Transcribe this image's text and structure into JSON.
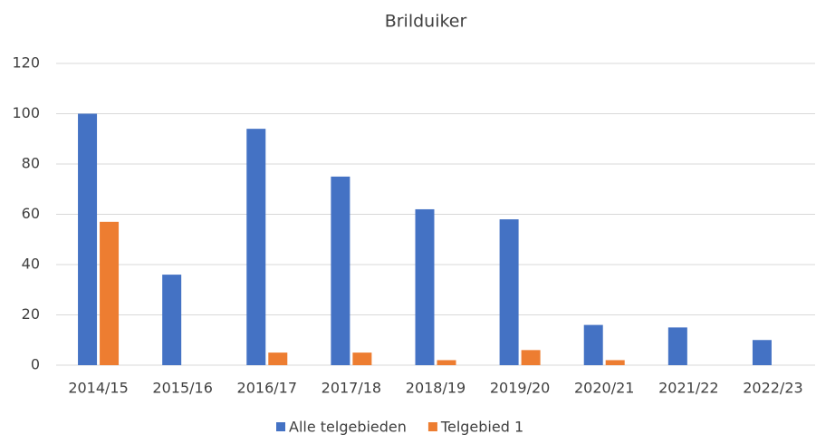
{
  "chart_data": {
    "type": "bar",
    "title": "Brilduiker",
    "categories": [
      "2014/15",
      "2015/16",
      "2016/17",
      "2017/18",
      "2018/19",
      "2019/20",
      "2020/21",
      "2021/22",
      "2022/23"
    ],
    "series": [
      {
        "name": "Alle telgebieden",
        "color": "#4472c4",
        "values": [
          100,
          36,
          94,
          75,
          62,
          58,
          16,
          15,
          10
        ]
      },
      {
        "name": "Telgebied 1",
        "color": "#ed7d31",
        "values": [
          57,
          0,
          5,
          5,
          2,
          6,
          2,
          0,
          0
        ]
      }
    ],
    "ylim": [
      0,
      120
    ],
    "yticks": [
      0,
      20,
      40,
      60,
      80,
      100,
      120
    ],
    "grid": true,
    "legend": "bottom"
  }
}
